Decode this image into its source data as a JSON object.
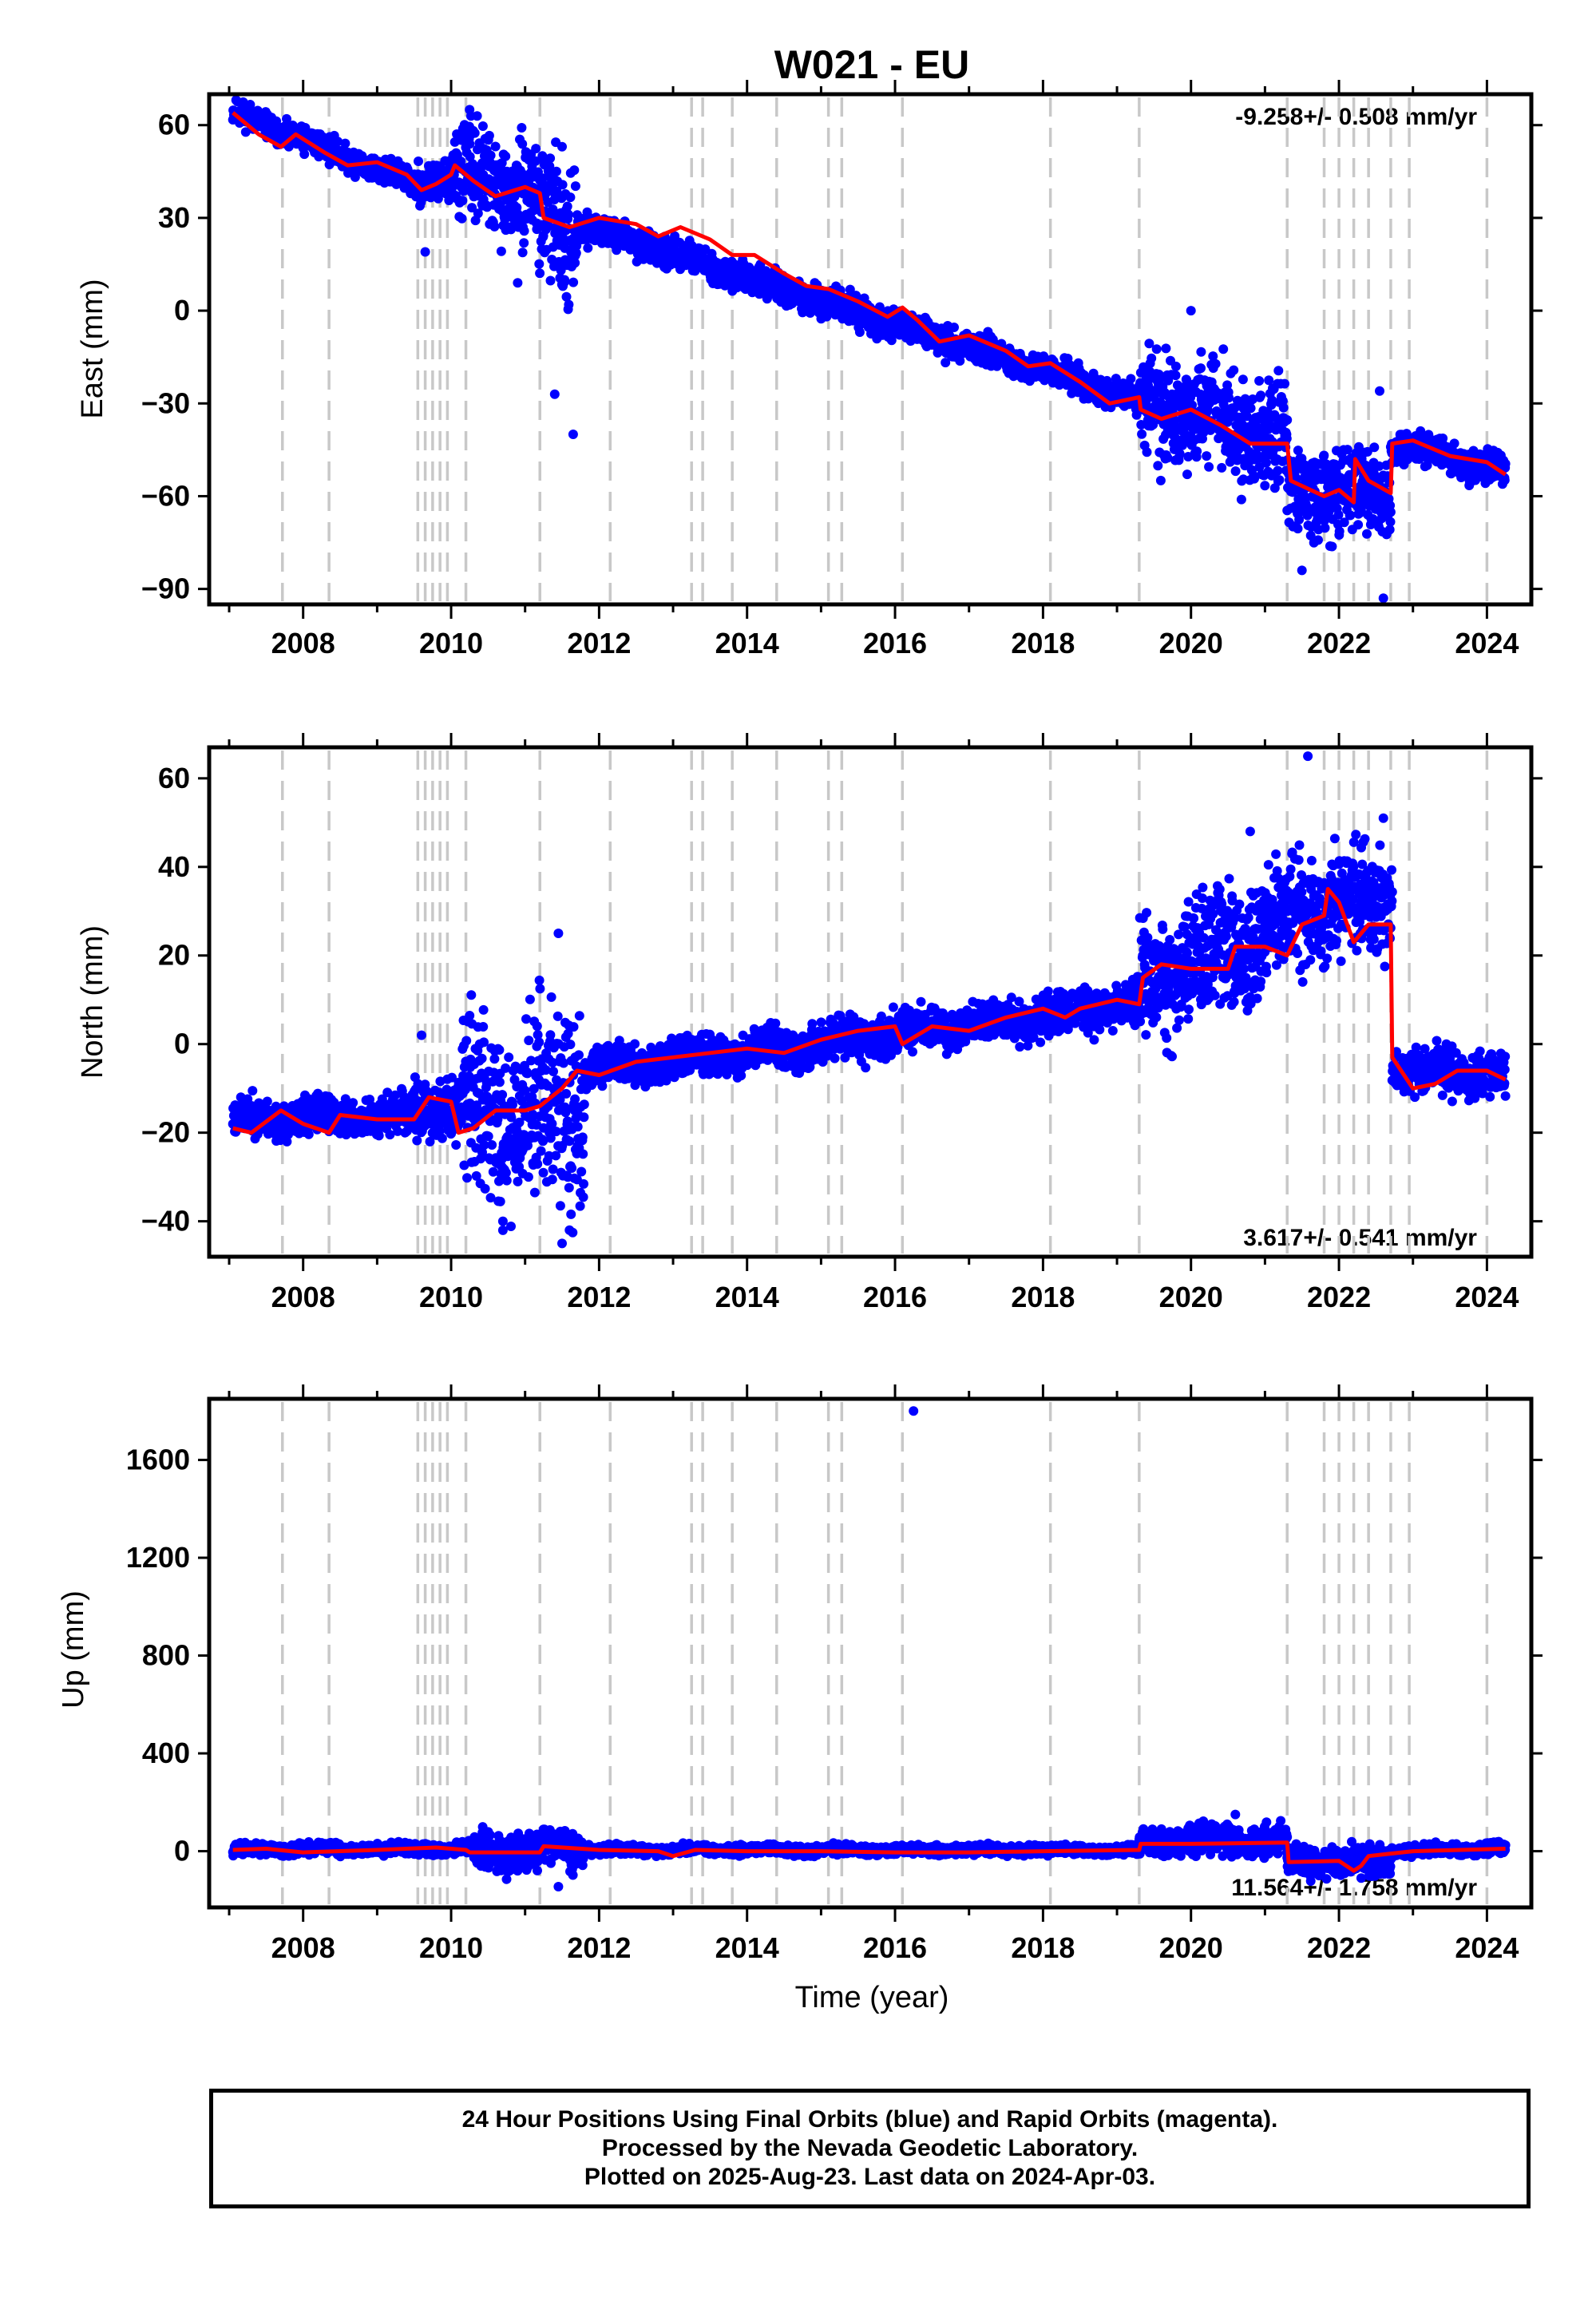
{
  "colors": {
    "observed": "#0000ff",
    "model": "#ff0000",
    "events": "#c8c8c8"
  },
  "footer": {
    "line1": "24 Hour Positions Using Final Orbits (blue) and Rapid Orbits (magenta).",
    "line2": "Processed by the Nevada Geodetic Laboratory.",
    "line3": "Plotted on 2025-Aug-23. Last data on 2024-Apr-03."
  },
  "chart_data": [
    {
      "type": "scatter",
      "title": "W021 - EU",
      "ylabel": "East (mm)",
      "xlabel": "",
      "rate": "-9.258+/- 0.508 mm/yr",
      "xlim": [
        2006.73,
        2024.6
      ],
      "ylim": [
        -95,
        70
      ],
      "yticks": [
        "60",
        "30",
        "0",
        "−30",
        "−60",
        "−90"
      ],
      "ytick_values": [
        60,
        30,
        0,
        -30,
        -60,
        -90
      ],
      "xticks": [
        "2008",
        "2010",
        "2012",
        "2014",
        "2016",
        "2018",
        "2020",
        "2022",
        "2024"
      ],
      "xtick_values": [
        2008,
        2010,
        2012,
        2014,
        2016,
        2018,
        2020,
        2022,
        2024
      ],
      "events": [
        2007.72,
        2008.35,
        2009.55,
        2009.65,
        2009.75,
        2009.85,
        2009.95,
        2010.2,
        2011.2,
        2012.15,
        2013.25,
        2013.4,
        2013.8,
        2014.4,
        2015.1,
        2015.28,
        2016.1,
        2018.1,
        2019.3,
        2021.3,
        2021.8,
        2022.0,
        2022.2,
        2022.4,
        2022.7,
        2022.95,
        2024.0
      ],
      "series": [
        {
          "name": "",
          "kind": "model",
          "x": [
            2007.05,
            2007.4,
            2007.7,
            2007.9,
            2008.3,
            2008.6,
            2009.0,
            2009.4,
            2009.6,
            2009.8,
            2010.0,
            2010.05,
            2010.3,
            2010.6,
            2011.0,
            2011.2,
            2011.25,
            2011.6,
            2012.0,
            2012.5,
            2012.8,
            2013.1,
            2013.5,
            2013.8,
            2014.1,
            2014.5,
            2014.8,
            2015.1,
            2015.5,
            2015.9,
            2016.1,
            2016.3,
            2016.6,
            2017.0,
            2017.5,
            2017.8,
            2018.1,
            2018.5,
            2018.9,
            2019.3,
            2019.32,
            2019.6,
            2020.0,
            2020.4,
            2020.8,
            2021.3,
            2021.35,
            2021.8,
            2022.0,
            2022.2,
            2022.22,
            2022.4,
            2022.7,
            2022.72,
            2023.0,
            2023.5,
            2024.0,
            2024.25
          ],
          "y": [
            64,
            57,
            53,
            57,
            51,
            47,
            48,
            44,
            39,
            41,
            44,
            47,
            42,
            37,
            40,
            38,
            30,
            27,
            30,
            28,
            24,
            27,
            23,
            18,
            18,
            12,
            8,
            7,
            3,
            -2,
            1,
            -3,
            -10,
            -8,
            -13,
            -18,
            -17,
            -23,
            -30,
            -28,
            -32,
            -35,
            -32,
            -37,
            -43,
            -43,
            -55,
            -60,
            -58,
            -62,
            -48,
            -55,
            -59,
            -43,
            -42,
            -47,
            -49,
            -53
          ]
        },
        {
          "name": "",
          "kind": "observed",
          "seed": 11,
          "segments": [
            [
              2007.05,
              2009.5,
              64,
              41,
              2.5
            ],
            [
              2009.5,
              2010.05,
              41,
              44,
              4
            ],
            [
              2010.05,
              2011.15,
              44,
              38,
              9
            ],
            [
              2011.15,
              2011.7,
              30,
              25,
              12
            ],
            [
              2011.7,
              2019.3,
              28,
              -29,
              2.8
            ],
            [
              2019.3,
              2021.3,
              -28,
              -43,
              10
            ],
            [
              2021.3,
              2022.7,
              -58,
              -58,
              8
            ],
            [
              2022.7,
              2024.25,
              -43,
              -52,
              3
            ]
          ],
          "outliers": [
            [
              2010.25,
              65
            ],
            [
              2010.9,
              9
            ],
            [
              2011.5,
              53
            ],
            [
              2011.4,
              -27
            ],
            [
              2011.65,
              -40
            ],
            [
              2009.65,
              19
            ],
            [
              2021.5,
              -84
            ],
            [
              2022.55,
              -26
            ],
            [
              2022.6,
              -93
            ],
            [
              2020.0,
              0
            ]
          ]
        }
      ]
    },
    {
      "type": "scatter",
      "title": "",
      "ylabel": "North (mm)",
      "xlabel": "",
      "rate": "3.617+/- 0.541 mm/yr",
      "xlim": [
        2006.73,
        2024.6
      ],
      "ylim": [
        -48,
        67
      ],
      "yticks": [
        "60",
        "40",
        "20",
        "0",
        "−20",
        "−40"
      ],
      "ytick_values": [
        60,
        40,
        20,
        0,
        -20,
        -40
      ],
      "xticks": [
        "2008",
        "2010",
        "2012",
        "2014",
        "2016",
        "2018",
        "2020",
        "2022",
        "2024"
      ],
      "xtick_values": [
        2008,
        2010,
        2012,
        2014,
        2016,
        2018,
        2020,
        2022,
        2024
      ],
      "events": [
        2007.72,
        2008.35,
        2009.55,
        2009.65,
        2009.75,
        2009.85,
        2009.95,
        2010.2,
        2011.2,
        2012.15,
        2013.25,
        2013.4,
        2013.8,
        2014.4,
        2015.1,
        2015.28,
        2016.1,
        2018.1,
        2019.3,
        2021.3,
        2021.8,
        2022.0,
        2022.2,
        2022.4,
        2022.7,
        2022.95,
        2024.0
      ],
      "series": [
        {
          "name": "",
          "kind": "model",
          "x": [
            2007.05,
            2007.3,
            2007.7,
            2008.0,
            2008.35,
            2008.5,
            2009.0,
            2009.5,
            2009.7,
            2010.0,
            2010.1,
            2010.3,
            2010.6,
            2011.0,
            2011.2,
            2011.5,
            2011.7,
            2012.0,
            2012.5,
            2013.0,
            2013.5,
            2014.0,
            2014.5,
            2015.0,
            2015.5,
            2016.0,
            2016.1,
            2016.5,
            2017.0,
            2017.5,
            2018.0,
            2018.3,
            2018.5,
            2019.0,
            2019.3,
            2019.35,
            2019.6,
            2020.0,
            2020.5,
            2020.6,
            2021.0,
            2021.3,
            2021.5,
            2021.8,
            2021.85,
            2022.0,
            2022.2,
            2022.4,
            2022.7,
            2022.72,
            2023.0,
            2023.3,
            2023.6,
            2024.0,
            2024.25
          ],
          "y": [
            -19,
            -20,
            -15,
            -18,
            -20,
            -16,
            -17,
            -17,
            -12,
            -13,
            -20,
            -19,
            -15,
            -15,
            -14,
            -10,
            -6,
            -7,
            -4,
            -3,
            -2,
            -1,
            -2,
            1,
            3,
            4,
            0,
            4,
            3,
            6,
            8,
            6,
            8,
            10,
            9,
            15,
            18,
            17,
            17,
            22,
            22,
            20,
            27,
            29,
            35,
            32,
            23,
            27,
            27,
            -3,
            -10,
            -9,
            -6,
            -6,
            -8
          ]
        },
        {
          "name": "",
          "kind": "observed",
          "seed": 23,
          "segments": [
            [
              2007.05,
              2009.5,
              -17,
              -16,
              2.5
            ],
            [
              2009.5,
              2010.15,
              -14,
              -15,
              4
            ],
            [
              2010.15,
              2011.8,
              -15,
              -14,
              12
            ],
            [
              2011.8,
              2019.3,
              -6,
              9,
              2.8
            ],
            [
              2019.3,
              2021.3,
              14,
              28,
              8
            ],
            [
              2021.3,
              2022.72,
              30,
              32,
              8
            ],
            [
              2022.72,
              2024.25,
              -6,
              -7,
              3
            ]
          ],
          "outliers": [
            [
              2011.45,
              25
            ],
            [
              2011.5,
              -45
            ],
            [
              2010.7,
              -40
            ],
            [
              2009.6,
              2
            ],
            [
              2021.58,
              65
            ],
            [
              2022.6,
              51
            ],
            [
              2020.8,
              48
            ],
            [
              2011.6,
              -42
            ]
          ]
        }
      ]
    },
    {
      "type": "scatter",
      "title": "",
      "ylabel": "Up (mm)",
      "xlabel": "Time (year)",
      "rate": "11.564+/- 1.758 mm/yr",
      "xlim": [
        2006.73,
        2024.6
      ],
      "ylim": [
        -230,
        1850
      ],
      "yticks": [
        "1600",
        "1200",
        "800",
        "400",
        "0"
      ],
      "ytick_values": [
        1600,
        1200,
        800,
        400,
        0
      ],
      "xticks": [
        "2008",
        "2010",
        "2012",
        "2014",
        "2016",
        "2018",
        "2020",
        "2022",
        "2024"
      ],
      "xtick_values": [
        2008,
        2010,
        2012,
        2014,
        2016,
        2018,
        2020,
        2022,
        2024
      ],
      "events": [
        2007.72,
        2008.35,
        2009.55,
        2009.65,
        2009.75,
        2009.85,
        2009.95,
        2010.2,
        2011.2,
        2012.15,
        2013.25,
        2013.4,
        2013.8,
        2014.4,
        2015.1,
        2015.28,
        2016.1,
        2018.1,
        2019.3,
        2021.3,
        2021.8,
        2022.0,
        2022.2,
        2022.4,
        2022.7,
        2022.95,
        2024.0
      ],
      "series": [
        {
          "name": "",
          "kind": "model",
          "x": [
            2007.05,
            2007.5,
            2008.0,
            2009.0,
            2009.8,
            2010.2,
            2010.25,
            2011.2,
            2011.25,
            2012.0,
            2012.8,
            2013.0,
            2013.3,
            2014.0,
            2015.0,
            2016.0,
            2017.0,
            2018.0,
            2019.3,
            2019.32,
            2020.0,
            2021.3,
            2021.32,
            2022.0,
            2022.2,
            2022.3,
            2022.4,
            2022.7,
            2023.0,
            2024.25
          ],
          "y": [
            5,
            10,
            -5,
            5,
            15,
            5,
            -5,
            -5,
            20,
            5,
            0,
            -20,
            5,
            0,
            0,
            -5,
            -5,
            0,
            5,
            30,
            30,
            35,
            -45,
            -40,
            -80,
            -60,
            -20,
            -10,
            0,
            10
          ]
        },
        {
          "name": "",
          "kind": "observed",
          "seed": 37,
          "segments": [
            [
              2007.05,
              2010.3,
              5,
              10,
              14
            ],
            [
              2010.3,
              2011.2,
              0,
              0,
              45
            ],
            [
              2011.2,
              2011.8,
              25,
              10,
              45
            ],
            [
              2011.8,
              2019.3,
              5,
              5,
              12
            ],
            [
              2019.3,
              2021.3,
              40,
              40,
              35
            ],
            [
              2021.3,
              2022.7,
              -40,
              -40,
              35
            ],
            [
              2022.7,
              2024.25,
              0,
              10,
              14
            ]
          ],
          "outliers": [
            [
              2016.25,
              1800
            ],
            [
              2011.45,
              -145
            ],
            [
              2010.75,
              -115
            ],
            [
              2020.6,
              150
            ],
            [
              2022.3,
              -110
            ]
          ]
        }
      ]
    }
  ]
}
